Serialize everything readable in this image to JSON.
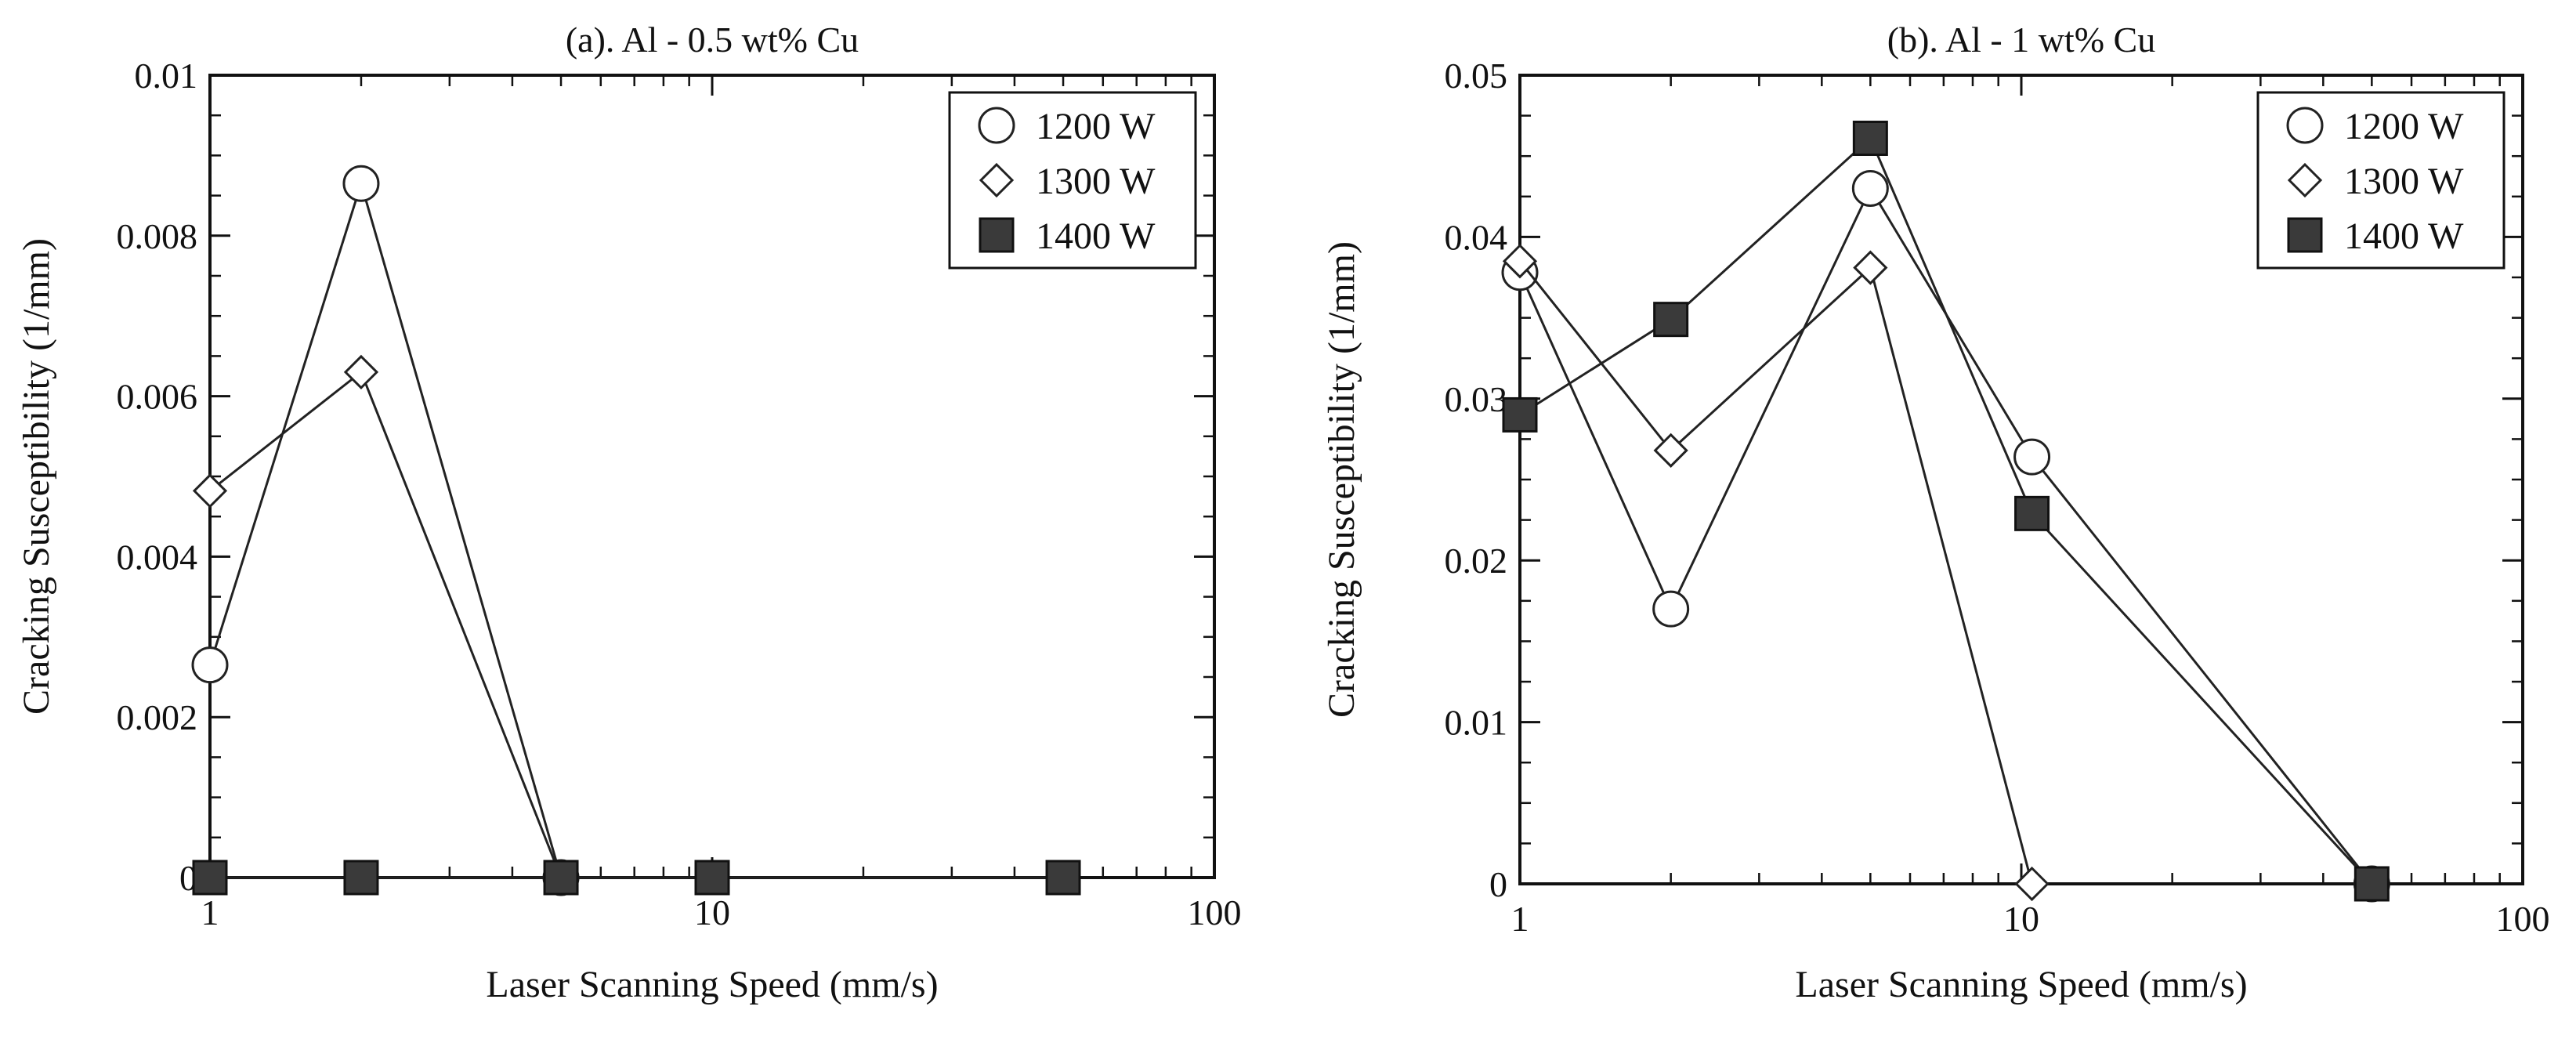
{
  "chart_data": [
    {
      "type": "line",
      "title": "(a). Al - 0.5 wt% Cu",
      "xlabel": "Laser Scanning Speed (mm/s)",
      "ylabel": "Cracking Susceptibility (1/mm)",
      "xscale": "log",
      "xlim": [
        1,
        100
      ],
      "ylim": [
        0,
        0.01
      ],
      "xticks": [
        1,
        10,
        100
      ],
      "xtick_labels": [
        "1",
        "10",
        "100"
      ],
      "yticks": [
        0,
        0.002,
        0.004,
        0.006,
        0.008,
        0.01
      ],
      "ytick_labels": [
        "0",
        "0.002",
        "0.004",
        "0.006",
        "0.008",
        "0.01"
      ],
      "legend_position": "top-right",
      "series": [
        {
          "name": "1200 W",
          "marker": "circle",
          "x": [
            1,
            2,
            5
          ],
          "y": [
            0.00265,
            0.00865,
            0
          ]
        },
        {
          "name": "1300 W",
          "marker": "diamond",
          "x": [
            1,
            2,
            5
          ],
          "y": [
            0.00482,
            0.0063,
            0
          ]
        },
        {
          "name": "1400 W",
          "marker": "square",
          "x": [
            1,
            2,
            5,
            10,
            50
          ],
          "y": [
            0,
            0,
            0,
            0,
            0
          ]
        }
      ]
    },
    {
      "type": "line",
      "title": "(b). Al - 1 wt% Cu",
      "xlabel": "Laser Scanning Speed (mm/s)",
      "ylabel": "Cracking Susceptibility (1/mm)",
      "xscale": "log",
      "xlim": [
        1,
        100
      ],
      "ylim": [
        0,
        0.05
      ],
      "xticks": [
        1,
        10,
        100
      ],
      "xtick_labels": [
        "1",
        "10",
        "100"
      ],
      "yticks": [
        0,
        0.01,
        0.02,
        0.03,
        0.04,
        0.05
      ],
      "ytick_labels": [
        "0",
        "0.01",
        "0.02",
        "0.03",
        "0.04",
        "0.05"
      ],
      "legend_position": "top-right",
      "series": [
        {
          "name": "1200 W",
          "marker": "circle",
          "x": [
            1,
            2,
            5,
            10.5,
            50
          ],
          "y": [
            0.0378,
            0.017,
            0.043,
            0.0264,
            0
          ]
        },
        {
          "name": "1300 W",
          "marker": "diamond",
          "x": [
            1,
            2,
            5,
            10.5
          ],
          "y": [
            0.0385,
            0.0268,
            0.0381,
            0
          ]
        },
        {
          "name": "1400 W",
          "marker": "square",
          "x": [
            1,
            2,
            5,
            10.5,
            50
          ],
          "y": [
            0.029,
            0.0349,
            0.0461,
            0.0229,
            0
          ]
        }
      ]
    }
  ]
}
